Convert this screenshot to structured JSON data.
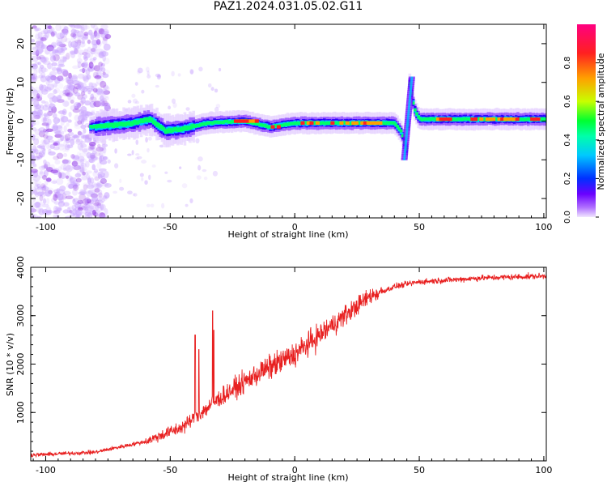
{
  "title": "PAZ1.2024.031.05.02.G11",
  "chart_data": [
    {
      "type": "heatmap",
      "name": "spectrogram",
      "xlabel": "Height of straight line (km)",
      "ylabel": "Frequency (Hz)",
      "xlim": [
        -106,
        101
      ],
      "ylim": [
        -25,
        25
      ],
      "x_ticks": [
        -100,
        -50,
        0,
        50,
        100
      ],
      "y_ticks": [
        -20,
        -10,
        0,
        10,
        20
      ],
      "colorbar": {
        "label": "Normalized spectral amplitude",
        "range": [
          0,
          1
        ],
        "ticks": [
          0.0,
          0.2,
          0.4,
          0.6,
          0.8
        ],
        "colors": [
          "#f0e6ff",
          "#b070ff",
          "#6a00ff",
          "#0030ff",
          "#00c8ff",
          "#00ff40",
          "#c8ff00",
          "#ffa000",
          "#ff2020",
          "#ff0080"
        ]
      },
      "ridge": [
        {
          "x": -100,
          "y": -1.5
        },
        {
          "x": -80,
          "y": -1.5
        },
        {
          "x": -65,
          "y": -0.5
        },
        {
          "x": -58,
          "y": 0.5
        },
        {
          "x": -52,
          "y": -2.5
        },
        {
          "x": -45,
          "y": -2
        },
        {
          "x": -35,
          "y": -0.5
        },
        {
          "x": -20,
          "y": 0
        },
        {
          "x": -10,
          "y": -1.5
        },
        {
          "x": 0,
          "y": -0.5
        },
        {
          "x": 20,
          "y": -0.5
        },
        {
          "x": 40,
          "y": -0.5
        },
        {
          "x": 43,
          "y": -3
        },
        {
          "x": 45,
          "y": -8
        },
        {
          "x": 46,
          "y": 10
        },
        {
          "x": 48,
          "y": 3
        },
        {
          "x": 50,
          "y": 0.5
        },
        {
          "x": 100,
          "y": 0.5
        }
      ],
      "noise_region_x": [
        -106,
        -75
      ]
    },
    {
      "type": "line",
      "name": "snr",
      "xlabel": "Height of straight line (km)",
      "ylabel": "SNR (10 * v/v)",
      "xlim": [
        -106,
        101
      ],
      "ylim": [
        0,
        4000
      ],
      "x_ticks": [
        -100,
        -50,
        0,
        50,
        100
      ],
      "y_ticks": [
        1000,
        2000,
        3000,
        4000
      ],
      "color": "#e82020",
      "trend": [
        {
          "x": -106,
          "y": 120
        },
        {
          "x": -80,
          "y": 180
        },
        {
          "x": -60,
          "y": 400
        },
        {
          "x": -45,
          "y": 700
        },
        {
          "x": -30,
          "y": 1300
        },
        {
          "x": -15,
          "y": 1800
        },
        {
          "x": 0,
          "y": 2200
        },
        {
          "x": 10,
          "y": 2600
        },
        {
          "x": 20,
          "y": 3000
        },
        {
          "x": 30,
          "y": 3400
        },
        {
          "x": 40,
          "y": 3600
        },
        {
          "x": 50,
          "y": 3700
        },
        {
          "x": 75,
          "y": 3780
        },
        {
          "x": 101,
          "y": 3820
        }
      ],
      "spikes": [
        {
          "x": -40,
          "y": 2600
        },
        {
          "x": -38.5,
          "y": 2300
        },
        {
          "x": -33,
          "y": 3100
        },
        {
          "x": -32.5,
          "y": 2700
        }
      ]
    }
  ]
}
